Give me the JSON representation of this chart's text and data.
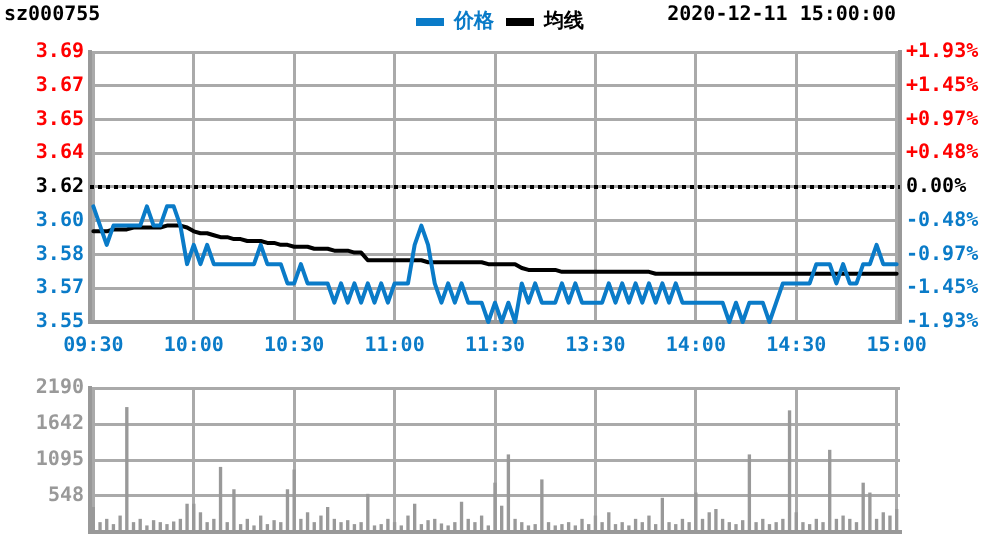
{
  "chart_data": [
    {
      "type": "line",
      "title": "sz000755",
      "subtitle": "2020-12-11 15:00:00",
      "legend": "top",
      "grid": true,
      "categories": [
        "09:30",
        null,
        null,
        null,
        null,
        null,
        null,
        null,
        null,
        null,
        null,
        null,
        null,
        null,
        null,
        "10:00",
        null,
        null,
        null,
        null,
        null,
        null,
        null,
        null,
        null,
        null,
        null,
        null,
        null,
        null,
        "10:30",
        null,
        null,
        null,
        null,
        null,
        null,
        null,
        null,
        null,
        null,
        null,
        null,
        null,
        null,
        "11:00",
        null,
        null,
        null,
        null,
        null,
        null,
        null,
        null,
        null,
        null,
        null,
        null,
        null,
        null,
        "11:30",
        null,
        null,
        null,
        null,
        null,
        null,
        null,
        null,
        null,
        null,
        null,
        null,
        null,
        null,
        "13:30",
        null,
        null,
        null,
        null,
        null,
        null,
        null,
        null,
        null,
        null,
        null,
        null,
        null,
        null,
        "14:00",
        null,
        null,
        null,
        null,
        null,
        null,
        null,
        null,
        null,
        null,
        null,
        null,
        null,
        null,
        "14:30",
        null,
        null,
        null,
        null,
        null,
        null,
        null,
        null,
        null,
        null,
        null,
        null,
        null,
        null,
        "15:00"
      ],
      "ylim": [
        3.55,
        3.69
      ],
      "yticks": [
        {
          "value": 3.55,
          "label": "3.55"
        },
        {
          "value": 3.5675,
          "label": "3.57"
        },
        {
          "value": 3.585,
          "label": "3.58"
        },
        {
          "value": 3.6025,
          "label": "3.60"
        },
        {
          "value": 3.62,
          "label": "3.62"
        },
        {
          "value": 3.6375,
          "label": "3.64"
        },
        {
          "value": 3.655,
          "label": "3.65"
        },
        {
          "value": 3.6725,
          "label": "3.67"
        },
        {
          "value": 3.69,
          "label": "3.69"
        }
      ],
      "y2lim": [
        -1.93,
        1.93
      ],
      "y2ticks": [
        {
          "value": -1.93,
          "label": "-1.93%"
        },
        {
          "value": -1.4475,
          "label": "-1.45%"
        },
        {
          "value": -0.965,
          "label": "-0.97%"
        },
        {
          "value": -0.4825,
          "label": "-0.48%"
        },
        {
          "value": 0,
          "label": "0.00%"
        },
        {
          "value": 0.4825,
          "label": "+0.48%"
        },
        {
          "value": 0.965,
          "label": "+0.97%"
        },
        {
          "value": 1.4475,
          "label": "+1.45%"
        },
        {
          "value": 1.93,
          "label": "+1.93%"
        }
      ],
      "ref_lines": [
        {
          "axis": "y",
          "value": 3.62,
          "color": "#000000",
          "line_style": "dotted"
        }
      ],
      "series": [
        {
          "name": "价格",
          "color": "#0a7bc8",
          "values": [
            3.61,
            3.6,
            3.59,
            3.6,
            3.6,
            3.6,
            3.6,
            3.6,
            3.61,
            3.6,
            3.6,
            3.61,
            3.61,
            3.6,
            3.58,
            3.59,
            3.58,
            3.59,
            3.58,
            3.58,
            3.58,
            3.58,
            3.58,
            3.58,
            3.58,
            3.59,
            3.58,
            3.58,
            3.58,
            3.57,
            3.57,
            3.58,
            3.57,
            3.57,
            3.57,
            3.57,
            3.56,
            3.57,
            3.56,
            3.57,
            3.56,
            3.57,
            3.56,
            3.57,
            3.56,
            3.57,
            3.57,
            3.57,
            3.59,
            3.6,
            3.59,
            3.57,
            3.56,
            3.57,
            3.56,
            3.57,
            3.56,
            3.56,
            3.56,
            3.55,
            3.56,
            3.55,
            3.56,
            3.55,
            3.57,
            3.56,
            3.57,
            3.56,
            3.56,
            3.56,
            3.57,
            3.56,
            3.57,
            3.56,
            3.56,
            3.56,
            3.56,
            3.57,
            3.56,
            3.57,
            3.56,
            3.57,
            3.56,
            3.57,
            3.56,
            3.57,
            3.56,
            3.57,
            3.56,
            3.56,
            3.56,
            3.56,
            3.56,
            3.56,
            3.56,
            3.55,
            3.56,
            3.55,
            3.56,
            3.56,
            3.56,
            3.55,
            3.56,
            3.57,
            3.57,
            3.57,
            3.57,
            3.57,
            3.58,
            3.58,
            3.58,
            3.57,
            3.58,
            3.57,
            3.57,
            3.58,
            3.58,
            3.59,
            3.58,
            3.58,
            3.58
          ]
        },
        {
          "name": "均线",
          "color": "#000000",
          "values": [
            3.597,
            3.597,
            3.597,
            3.598,
            3.598,
            3.598,
            3.599,
            3.599,
            3.599,
            3.599,
            3.599,
            3.6,
            3.6,
            3.6,
            3.599,
            3.597,
            3.596,
            3.596,
            3.595,
            3.594,
            3.594,
            3.593,
            3.593,
            3.592,
            3.592,
            3.592,
            3.591,
            3.591,
            3.59,
            3.59,
            3.589,
            3.589,
            3.589,
            3.588,
            3.588,
            3.588,
            3.587,
            3.587,
            3.587,
            3.586,
            3.586,
            3.582,
            3.582,
            3.582,
            3.582,
            3.582,
            3.582,
            3.582,
            3.582,
            3.582,
            3.581,
            3.581,
            3.581,
            3.581,
            3.581,
            3.581,
            3.581,
            3.581,
            3.581,
            3.58,
            3.58,
            3.58,
            3.58,
            3.58,
            3.578,
            3.577,
            3.577,
            3.577,
            3.577,
            3.577,
            3.576,
            3.576,
            3.576,
            3.576,
            3.576,
            3.576,
            3.576,
            3.576,
            3.576,
            3.576,
            3.576,
            3.576,
            3.576,
            3.576,
            3.575,
            3.575,
            3.575,
            3.575,
            3.575,
            3.575,
            3.575,
            3.575,
            3.575,
            3.575,
            3.575,
            3.575,
            3.575,
            3.575,
            3.575,
            3.575,
            3.575,
            3.575,
            3.575,
            3.575,
            3.575,
            3.575,
            3.575,
            3.575,
            3.575,
            3.575,
            3.575,
            3.575,
            3.575,
            3.575,
            3.575,
            3.575,
            3.575,
            3.575,
            3.575,
            3.575,
            3.575
          ]
        }
      ]
    },
    {
      "type": "bar",
      "color": "#999999",
      "grid": true,
      "tick_labels": "y",
      "categories": [
        null,
        null,
        null,
        null,
        null,
        null,
        null,
        null,
        null,
        null,
        null,
        null,
        null,
        null,
        null,
        null,
        null,
        null,
        null,
        null,
        null,
        null,
        null,
        null,
        null,
        null,
        null,
        null,
        null,
        null,
        null,
        null,
        null,
        null,
        null,
        null,
        null,
        null,
        null,
        null,
        null,
        null,
        null,
        null,
        null,
        null,
        null,
        null,
        null,
        null,
        null,
        null,
        null,
        null,
        null,
        null,
        null,
        null,
        null,
        null,
        null,
        null,
        null,
        null,
        null,
        null,
        null,
        null,
        null,
        null,
        null,
        null,
        null,
        null,
        null,
        null,
        null,
        null,
        null,
        null,
        null,
        null,
        null,
        null,
        null,
        null,
        null,
        null,
        null,
        null,
        null,
        null,
        null,
        null,
        null,
        null,
        null,
        null,
        null,
        null,
        null,
        null,
        null,
        null,
        null,
        null,
        null,
        null,
        null,
        null,
        null,
        null,
        null,
        null,
        null,
        null,
        null,
        null,
        null,
        null,
        null
      ],
      "ylim": [
        0,
        2190
      ],
      "yticks": [
        {
          "value": 0,
          "label": null
        },
        548,
        1095,
        1642,
        2190
      ],
      "values": [
        380,
        150,
        200,
        120,
        250,
        1900,
        150,
        200,
        100,
        180,
        150,
        120,
        160,
        200,
        430,
        430,
        300,
        150,
        200,
        990,
        150,
        650,
        120,
        200,
        100,
        250,
        120,
        180,
        150,
        650,
        950,
        200,
        300,
        150,
        250,
        380,
        200,
        150,
        180,
        120,
        150,
        580,
        100,
        120,
        200,
        150,
        100,
        250,
        430,
        120,
        180,
        200,
        130,
        100,
        150,
        460,
        200,
        150,
        250,
        100,
        750,
        400,
        1180,
        200,
        150,
        100,
        120,
        800,
        150,
        100,
        120,
        150,
        100,
        200,
        120,
        250,
        150,
        300,
        120,
        150,
        100,
        200,
        150,
        250,
        120,
        520,
        150,
        120,
        200,
        150,
        600,
        200,
        300,
        350,
        200,
        150,
        120,
        180,
        1180,
        150,
        200,
        120,
        150,
        200,
        1850,
        300,
        150,
        120,
        200,
        150,
        1250,
        200,
        250,
        200,
        150,
        750,
        600,
        200,
        300,
        250,
        350
      ]
    }
  ]
}
